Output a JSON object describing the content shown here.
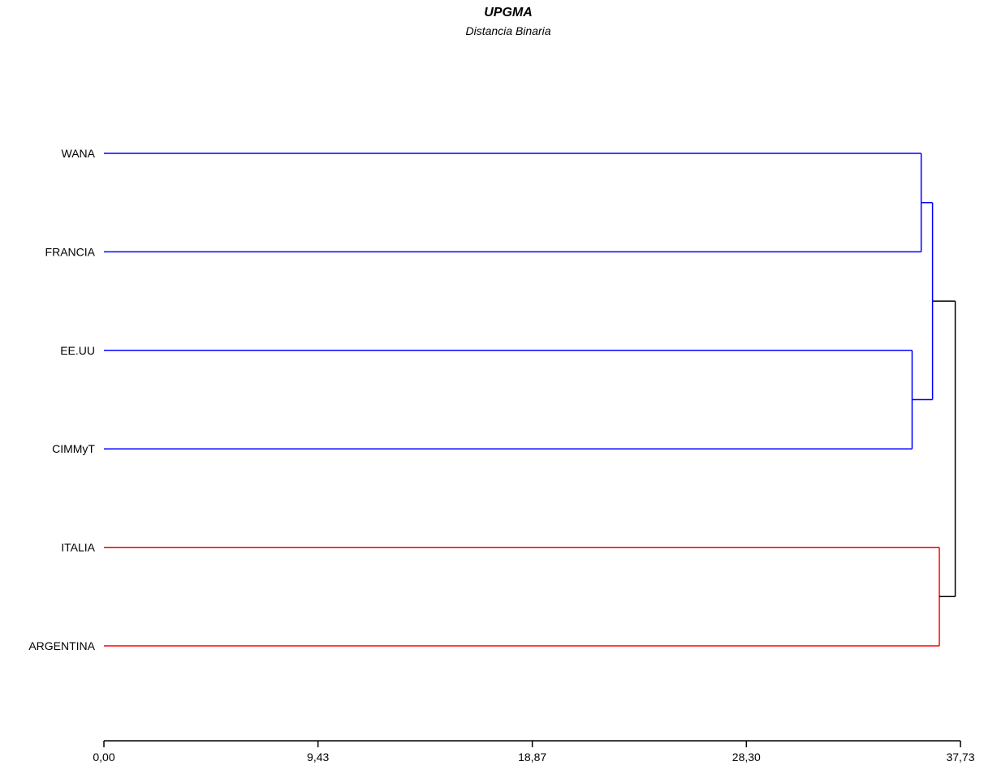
{
  "chart_data": {
    "type": "dendrogram",
    "title": "UPGMA",
    "subtitle": "Distancia Binaria",
    "xlabel": "",
    "ylabel": "",
    "xlim": [
      0,
      37.73
    ],
    "x_ticks": [
      "0,00",
      "9,43",
      "18,87",
      "28,30",
      "37,73"
    ],
    "x_tick_values": [
      0,
      9.43,
      18.87,
      28.3,
      37.73
    ],
    "grid": false,
    "leaves": [
      "WANA",
      "FRANCIA",
      "EE.UU",
      "CIMMyT",
      "ITALIA",
      "ARGENTINA"
    ],
    "merges": [
      {
        "id": "c1",
        "left": "CIMMyT",
        "right": "EE.UU",
        "height": 35.6,
        "color": "#0000ff"
      },
      {
        "id": "c2",
        "left": "WANA",
        "right": "FRANCIA",
        "height": 36.0,
        "color": "#0000ff"
      },
      {
        "id": "c3",
        "left": "c2",
        "right": "c1",
        "height": 36.5,
        "color": "#0000ff"
      },
      {
        "id": "c4",
        "left": "ITALIA",
        "right": "ARGENTINA",
        "height": 36.8,
        "color": "#ff0000"
      },
      {
        "id": "c5",
        "left": "c3",
        "right": "c4",
        "height": 37.5,
        "color": "#000000"
      }
    ],
    "colors": {
      "blue": "#0000ff",
      "red": "#ff0000",
      "root": "#000000",
      "axis": "#000000"
    }
  }
}
